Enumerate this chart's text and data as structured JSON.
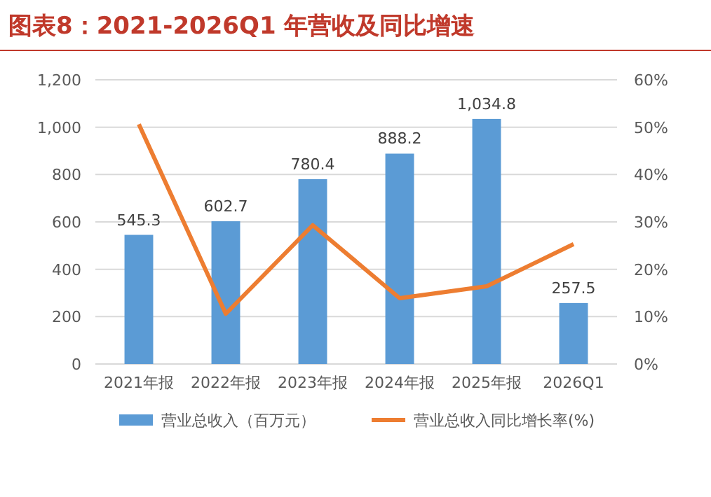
{
  "chart_data": {
    "type": "bar",
    "title": "图表8：2021-2026Q1 年营收及同比增速",
    "categories": [
      "2021年报",
      "2022年报",
      "2023年报",
      "2024年报",
      "2025年报",
      "2026Q1"
    ],
    "series": [
      {
        "name": "营业总收入（百万元）",
        "color": "#5b9bd5",
        "values": [
          545.3,
          602.7,
          780.4,
          888.2,
          1034.8,
          257.5
        ],
        "data_labels": true,
        "value_labels": [
          "545.3",
          "602.7",
          "780.4",
          "888.2",
          "1,034.8",
          "257.5"
        ]
      },
      {
        "name": "营业总收入同比增长率(%)",
        "type": "line",
        "axis": "y2",
        "color": "#ed7d31",
        "values": [
          50.6,
          10.6,
          29.3,
          13.9,
          16.4,
          25.3
        ]
      }
    ],
    "ylim": [
      0,
      1200
    ],
    "yticks": [
      0,
      200,
      400,
      600,
      800,
      {
        "value": 1000,
        "label": "1,000"
      },
      {
        "value": 1200,
        "label": "1,200"
      }
    ],
    "y2lim": [
      0,
      60
    ],
    "y2ticks": [
      {
        "value": 0,
        "label": "0%"
      },
      {
        "value": 10,
        "label": "10%"
      },
      {
        "value": 20,
        "label": "20%"
      },
      {
        "value": 30,
        "label": "30%"
      },
      {
        "value": 40,
        "label": "40%"
      },
      {
        "value": 50,
        "label": "50%"
      },
      {
        "value": 60,
        "label": "60%"
      }
    ],
    "grid": "y",
    "legend": "bottom",
    "marker": "none",
    "line_style": "solid"
  }
}
